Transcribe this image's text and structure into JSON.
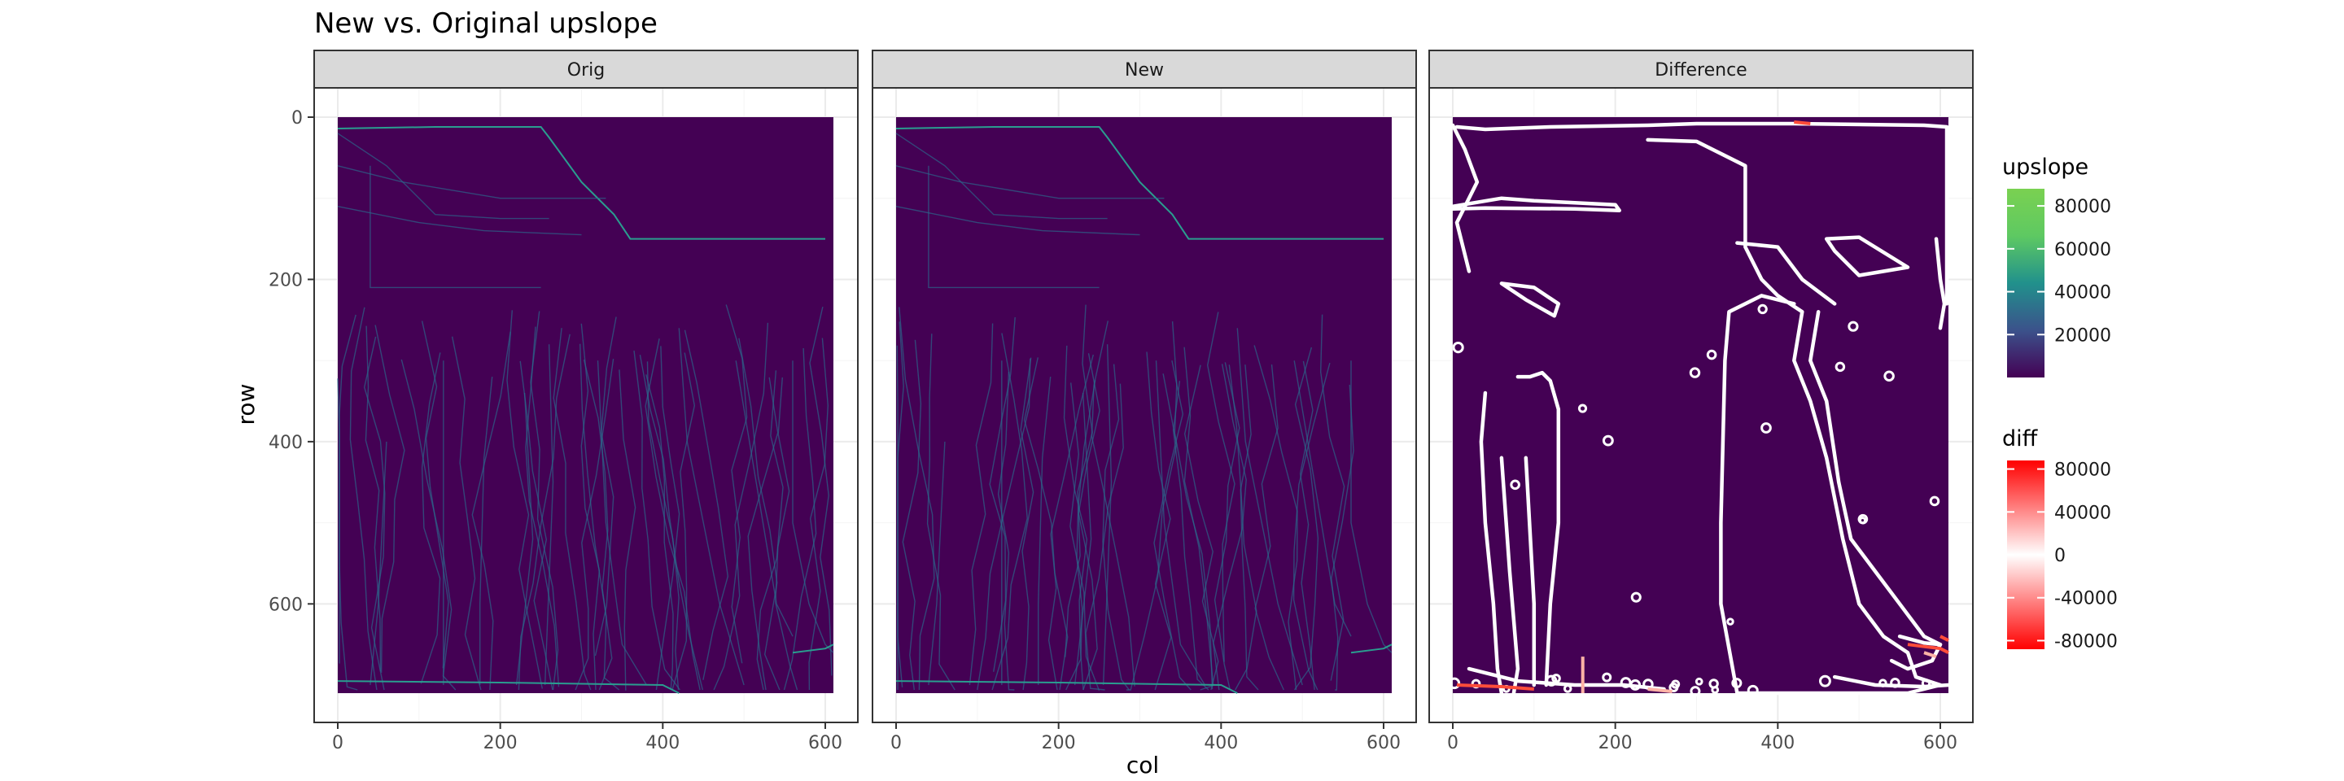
{
  "chart_data": {
    "type": "heatmap",
    "title": "New vs. Original upslope",
    "xlabel": "col",
    "ylabel": "row",
    "facets": [
      "Orig",
      "New",
      "Difference"
    ],
    "xlim": [
      0,
      610
    ],
    "ylim": [
      710,
      0
    ],
    "x_ticks": [
      0,
      200,
      400,
      600
    ],
    "y_ticks": [
      0,
      200,
      400,
      600
    ],
    "grid": true,
    "legends": [
      {
        "title": "upslope",
        "labels": [
          "80000",
          "60000",
          "40000",
          "20000"
        ],
        "breaks": [
          80000,
          60000,
          40000,
          20000
        ],
        "range": [
          0,
          88000
        ],
        "colors": [
          "#440154",
          "#3b528b",
          "#21918c",
          "#5ec962",
          "#7ad151"
        ]
      },
      {
        "title": "diff",
        "labels": [
          "80000",
          "40000",
          "0",
          "-40000",
          "-80000"
        ],
        "breaks": [
          80000,
          40000,
          0,
          -40000,
          -80000
        ],
        "range": [
          -88000,
          88000
        ],
        "colors": [
          "#ff0000",
          "#ffffff",
          "#ff0000"
        ]
      }
    ],
    "background_fill": "#440154"
  }
}
